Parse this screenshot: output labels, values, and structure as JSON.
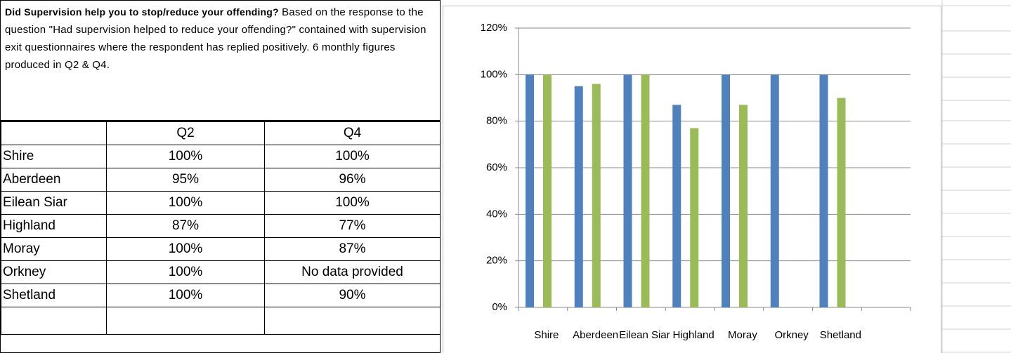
{
  "description": {
    "heading": "Did Supervision help you to stop/reduce your offending?",
    "text": "Based on the response to the question \"Had supervision helped to reduce your offending?\" contained with supervision exit questionnaires where the respondent has replied positively. 6 monthly figures produced in Q2 & Q4."
  },
  "table": {
    "header": [
      "Q2",
      "Q4"
    ],
    "rows": [
      [
        "Shire",
        "100%",
        "100%"
      ],
      [
        "Aberdeen",
        "95%",
        "96%"
      ],
      [
        "Eilean Siar",
        "100%",
        "100%"
      ],
      [
        "Highland",
        "87%",
        "77%"
      ],
      [
        "Moray",
        "100%",
        "87%"
      ],
      [
        "Orkney",
        "100%",
        "No data provided"
      ],
      [
        "Shetland",
        "100%",
        "90%"
      ]
    ]
  },
  "chart_data": {
    "type": "bar",
    "categories": [
      "Shire",
      "Aberdeen",
      "Eilean Siar",
      "Highland",
      "Moray",
      "Orkney",
      "Shetland",
      null
    ],
    "series": [
      {
        "color": "#4f81bd",
        "values": [
          100,
          95,
          100,
          87,
          100,
          100,
          100,
          null
        ]
      },
      {
        "color": "#9bbb59",
        "values": [
          100,
          96,
          100,
          77,
          87,
          null,
          90,
          null
        ]
      }
    ],
    "ylim": [
      0,
      120
    ],
    "yticks": [
      {
        "value": 0,
        "label": "0%"
      },
      {
        "value": 20,
        "label": "20%"
      },
      {
        "value": 40,
        "label": "40%"
      },
      {
        "value": 60,
        "label": "60%"
      },
      {
        "value": 80,
        "label": "80%"
      },
      {
        "value": 100,
        "label": "100%"
      },
      {
        "value": 120,
        "label": "120%"
      }
    ],
    "grid": true
  }
}
